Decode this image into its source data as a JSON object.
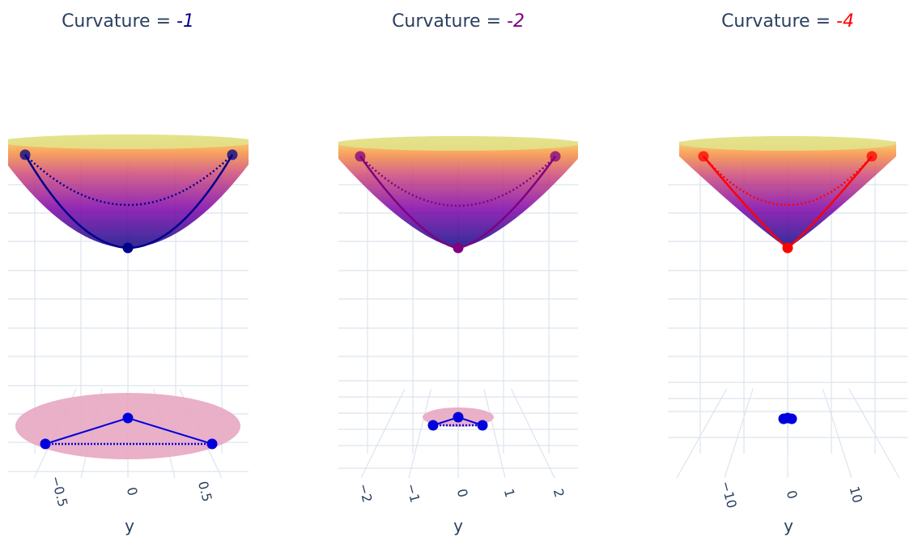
{
  "chart_data": [
    {
      "type": "surface3d",
      "title_prefix": "Curvature = ",
      "curvature_label": "-1",
      "accent": "#00008b",
      "disk_color": "#e7a7c2",
      "projection_color": "#0000dd",
      "surface_colors": [
        "#0d0887",
        "#7e03a8",
        "#cc4778",
        "#f89540",
        "#f0f921"
      ],
      "grid_color": "#dde4ee",
      "xlabel": "y",
      "ticks": [
        "−0.5",
        "0",
        "0.5"
      ],
      "tick_values": [
        -0.5,
        0,
        0.5
      ],
      "ylim": [
        -0.85,
        0.85
      ]
    },
    {
      "type": "surface3d",
      "title_prefix": "Curvature = ",
      "curvature_label": "-2",
      "accent": "#800080",
      "disk_color": "#e7a7c2",
      "projection_color": "#0000dd",
      "surface_colors": [
        "#0d0887",
        "#7e03a8",
        "#cc4778",
        "#f89540",
        "#f0f921"
      ],
      "grid_color": "#dde4ee",
      "xlabel": "y",
      "ticks": [
        "−2",
        "−1",
        "0",
        "1",
        "2"
      ],
      "tick_values": [
        -2,
        -1,
        0,
        1,
        2
      ],
      "ylim": [
        -2.5,
        2.5
      ]
    },
    {
      "type": "surface3d",
      "title_prefix": "Curvature = ",
      "curvature_label": "-4",
      "accent": "#ff0000",
      "disk_color": "#e7a7c2",
      "projection_color": "#0000dd",
      "surface_colors": [
        "#0d0887",
        "#7e03a8",
        "#cc4778",
        "#f89540",
        "#f0f921"
      ],
      "grid_color": "#dde4ee",
      "xlabel": "y",
      "ticks": [
        "−10",
        "0",
        "10"
      ],
      "tick_values": [
        -10,
        0,
        10
      ],
      "ylim": [
        -19,
        19
      ]
    }
  ]
}
